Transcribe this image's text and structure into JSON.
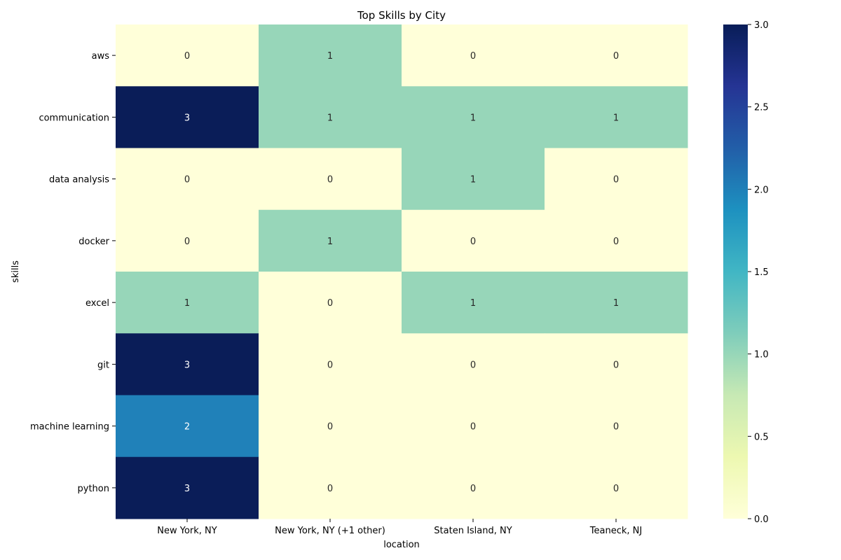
{
  "chart_data": {
    "type": "heatmap",
    "title": "Top Skills by City",
    "xlabel": "location",
    "ylabel": "skills",
    "x": [
      "New York, NY",
      "New York, NY (+1 other)",
      "Staten Island, NY",
      "Teaneck, NJ"
    ],
    "y": [
      "aws",
      "communication",
      "data analysis",
      "docker",
      "excel",
      "git",
      "machine learning",
      "python"
    ],
    "values": [
      [
        0,
        1,
        0,
        0
      ],
      [
        3,
        1,
        1,
        1
      ],
      [
        0,
        0,
        1,
        0
      ],
      [
        0,
        1,
        0,
        0
      ],
      [
        1,
        0,
        1,
        1
      ],
      [
        3,
        0,
        0,
        0
      ],
      [
        2,
        0,
        0,
        0
      ],
      [
        3,
        0,
        0,
        0
      ]
    ],
    "colorscale": "YlGnBu",
    "colorbar": {
      "range": [
        0.0,
        3.0
      ],
      "ticks": [
        "0.0",
        "0.5",
        "1.0",
        "1.5",
        "2.0",
        "2.5",
        "3.0"
      ]
    },
    "annotations": true,
    "colors": {
      "zero": "#ffffd9",
      "one": "#97d6b9",
      "two": "#2081b9",
      "three": "#0a1d58"
    }
  }
}
